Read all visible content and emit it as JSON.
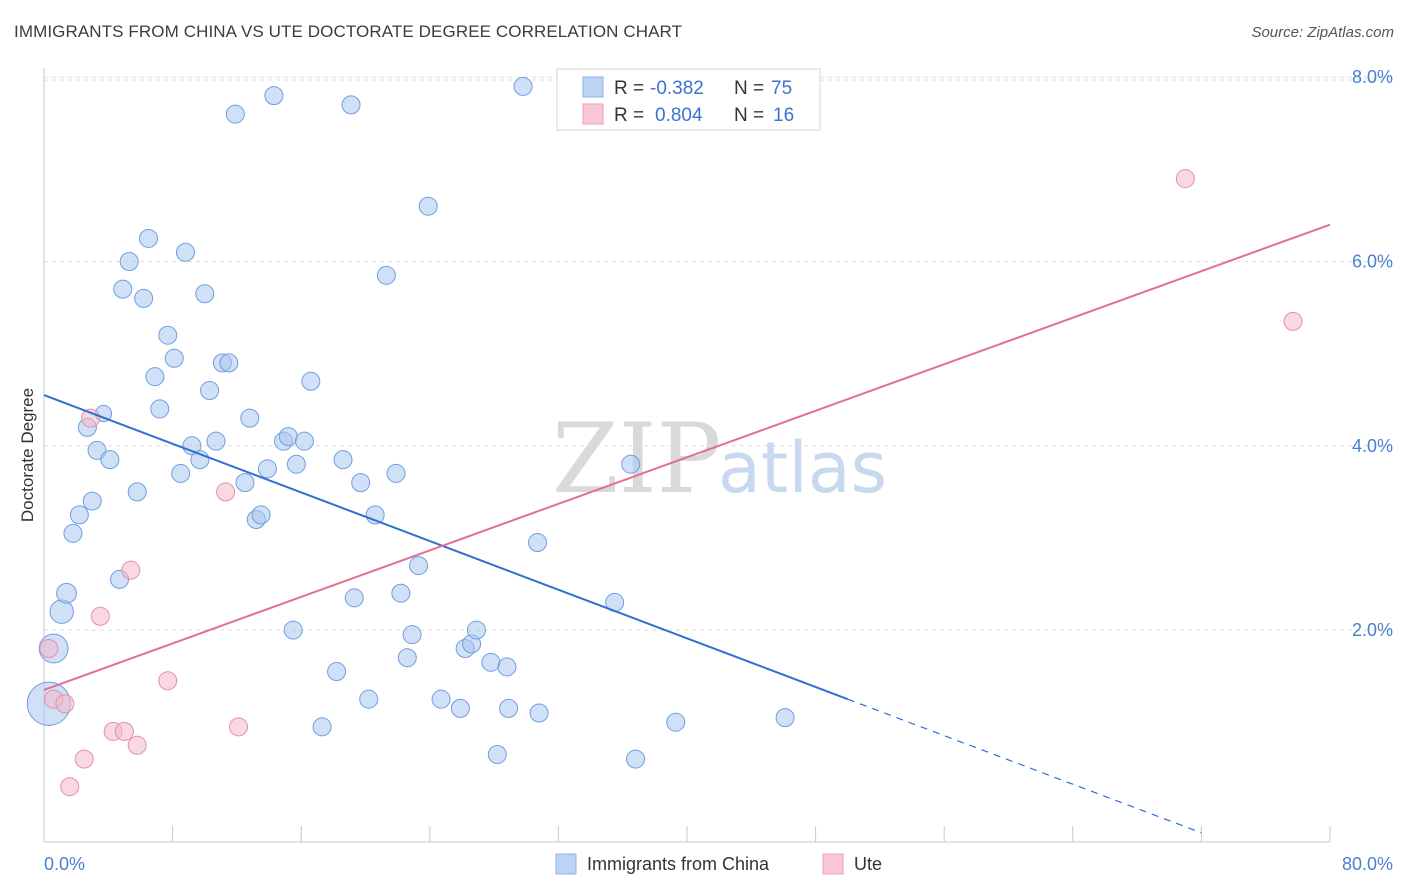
{
  "header": {
    "title": "IMMIGRANTS FROM CHINA VS UTE DOCTORATE DEGREE CORRELATION CHART",
    "source": "Source: ZipAtlas.com"
  },
  "watermark": {
    "zip": "ZIP",
    "atlas": "atlas"
  },
  "legend": {
    "rows": [
      {
        "r_label": "R =",
        "r_value": "-0.382",
        "n_label": "N =",
        "n_value": "75"
      },
      {
        "r_label": "R =",
        "r_value": "0.804",
        "n_label": "N =",
        "n_value": "16"
      }
    ]
  },
  "chart_data": {
    "type": "scatter",
    "title": "IMMIGRANTS FROM CHINA VS UTE DOCTORATE DEGREE CORRELATION CHART",
    "xlabel": "",
    "ylabel": "Doctorate Degree",
    "xlim": [
      0,
      80
    ],
    "ylim": [
      -0.3,
      8.1
    ],
    "x_tick_labels": [
      "0.0%",
      "80.0%"
    ],
    "y_ticks": [
      2,
      4,
      6,
      8
    ],
    "y_tick_labels": [
      "2.0%",
      "4.0%",
      "6.0%",
      "8.0%"
    ],
    "grid": true,
    "legend_position": "top-center",
    "colors": {
      "china": "#a9c6ef",
      "china_line": "#2f6fcf",
      "ute": "#f4b8cb",
      "ute_line": "#e06f95"
    },
    "series": [
      {
        "name": "Immigrants from China",
        "r": -0.382,
        "n": 75,
        "trend": {
          "x0": 0,
          "y0": 4.55,
          "x1": 50,
          "y1": 1.25,
          "dashed_to_x": 72,
          "dashed_to_y": -0.2
        },
        "points": [
          [
            0.3,
            1.2,
            2.4
          ],
          [
            0.6,
            1.8,
            1.6
          ],
          [
            1.1,
            2.2,
            1.3
          ],
          [
            1.4,
            2.4,
            1.1
          ],
          [
            1.8,
            3.05,
            1.0
          ],
          [
            2.2,
            3.25,
            1.0
          ],
          [
            2.7,
            4.2,
            1.0
          ],
          [
            3.0,
            3.4,
            1.0
          ],
          [
            3.3,
            3.95,
            1.0
          ],
          [
            3.7,
            4.35,
            0.9
          ],
          [
            4.1,
            3.85,
            1.0
          ],
          [
            4.7,
            2.55,
            1.0
          ],
          [
            4.9,
            5.7,
            1.0
          ],
          [
            5.3,
            6.0,
            1.0
          ],
          [
            5.8,
            3.5,
            1.0
          ],
          [
            6.2,
            5.6,
            1.0
          ],
          [
            6.5,
            6.25,
            1.0
          ],
          [
            6.9,
            4.75,
            1.0
          ],
          [
            7.2,
            4.4,
            1.0
          ],
          [
            7.7,
            5.2,
            1.0
          ],
          [
            8.1,
            4.95,
            1.0
          ],
          [
            8.5,
            3.7,
            1.0
          ],
          [
            8.8,
            6.1,
            1.0
          ],
          [
            9.2,
            4.0,
            1.0
          ],
          [
            9.7,
            3.85,
            1.0
          ],
          [
            10.0,
            5.65,
            1.0
          ],
          [
            10.3,
            4.6,
            1.0
          ],
          [
            10.7,
            4.05,
            1.0
          ],
          [
            11.1,
            4.9,
            1.0
          ],
          [
            11.5,
            4.9,
            1.0
          ],
          [
            11.9,
            7.6,
            1.0
          ],
          [
            12.5,
            3.6,
            1.0
          ],
          [
            12.8,
            4.3,
            1.0
          ],
          [
            13.2,
            3.2,
            1.0
          ],
          [
            13.5,
            3.25,
            1.0
          ],
          [
            13.9,
            3.75,
            1.0
          ],
          [
            14.3,
            7.8,
            1.0
          ],
          [
            14.9,
            4.05,
            1.0
          ],
          [
            15.2,
            4.1,
            1.0
          ],
          [
            15.5,
            2.0,
            1.0
          ],
          [
            15.7,
            3.8,
            1.0
          ],
          [
            16.2,
            4.05,
            1.0
          ],
          [
            16.6,
            4.7,
            1.0
          ],
          [
            17.3,
            0.95,
            1.0
          ],
          [
            18.2,
            1.55,
            1.0
          ],
          [
            18.6,
            3.85,
            1.0
          ],
          [
            19.1,
            7.7,
            1.0
          ],
          [
            19.3,
            2.35,
            1.0
          ],
          [
            19.7,
            3.6,
            1.0
          ],
          [
            20.2,
            1.25,
            1.0
          ],
          [
            20.6,
            3.25,
            1.0
          ],
          [
            21.3,
            5.85,
            1.0
          ],
          [
            21.9,
            3.7,
            1.0
          ],
          [
            22.2,
            2.4,
            1.0
          ],
          [
            22.6,
            1.7,
            1.0
          ],
          [
            22.9,
            1.95,
            1.0
          ],
          [
            23.3,
            2.7,
            1.0
          ],
          [
            23.9,
            6.6,
            1.0
          ],
          [
            24.7,
            1.25,
            1.0
          ],
          [
            25.9,
            1.15,
            1.0
          ],
          [
            26.2,
            1.8,
            1.0
          ],
          [
            26.6,
            1.85,
            1.0
          ],
          [
            26.9,
            2.0,
            1.0
          ],
          [
            27.8,
            1.65,
            1.0
          ],
          [
            28.2,
            0.65,
            1.0
          ],
          [
            28.8,
            1.6,
            1.0
          ],
          [
            28.9,
            1.15,
            1.0
          ],
          [
            29.8,
            7.9,
            1.0
          ],
          [
            30.7,
            2.95,
            1.0
          ],
          [
            30.8,
            1.1,
            1.0
          ],
          [
            35.5,
            2.3,
            1.0
          ],
          [
            36.5,
            3.8,
            1.0
          ],
          [
            36.8,
            0.6,
            1.0
          ],
          [
            39.3,
            1.0,
            1.0
          ],
          [
            46.1,
            1.05,
            1.0
          ]
        ]
      },
      {
        "name": "Ute",
        "r": 0.804,
        "n": 16,
        "trend": {
          "x0": 0,
          "y0": 1.35,
          "x1": 80,
          "y1": 6.4
        },
        "points": [
          [
            0.3,
            1.8,
            1.0
          ],
          [
            0.6,
            1.25,
            1.0
          ],
          [
            1.3,
            1.2,
            1.0
          ],
          [
            1.6,
            0.3,
            1.0
          ],
          [
            2.5,
            0.6,
            1.0
          ],
          [
            2.9,
            4.3,
            1.0
          ],
          [
            3.5,
            2.15,
            1.0
          ],
          [
            4.3,
            0.9,
            1.0
          ],
          [
            5.0,
            0.9,
            1.0
          ],
          [
            5.4,
            2.65,
            1.0
          ],
          [
            5.8,
            0.75,
            1.0
          ],
          [
            7.7,
            1.45,
            1.0
          ],
          [
            11.3,
            3.5,
            1.0
          ],
          [
            12.1,
            0.95,
            1.0
          ],
          [
            71.0,
            6.9,
            1.0
          ],
          [
            77.7,
            5.35,
            1.0
          ]
        ]
      }
    ]
  }
}
